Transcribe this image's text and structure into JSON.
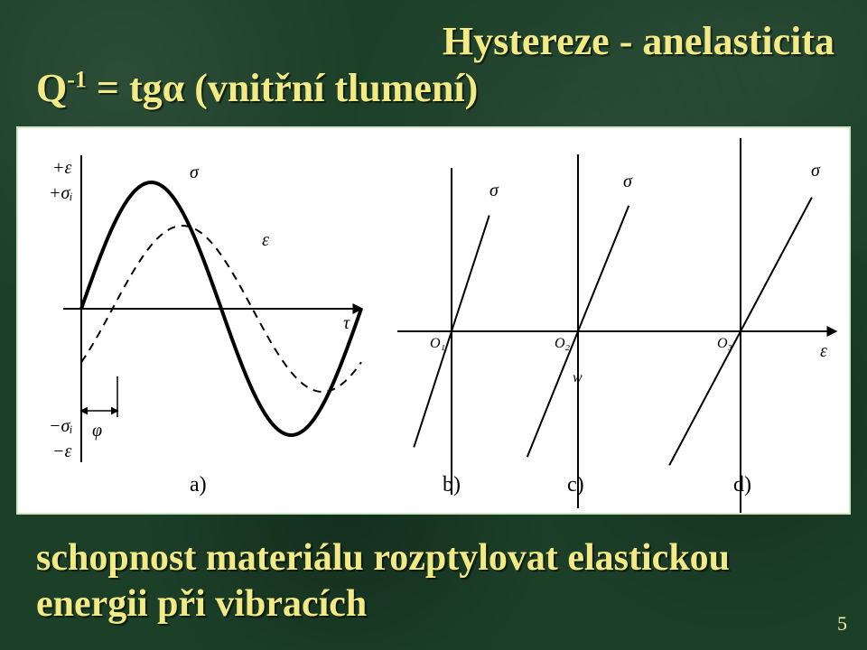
{
  "title_right": "Hystereze - anelasticita",
  "formula": {
    "q": "Q",
    "exp": "-1",
    "rest": " = tgα  (vnitřní tlumení)"
  },
  "caption_line1": "schopnost materiálu rozptylovat elastickou",
  "caption_line2": "energii při vibracích",
  "page_number": "5",
  "diagram": {
    "labels": {
      "a": "a)",
      "b": "b)",
      "c": "c)",
      "d": "d)"
    },
    "axis_symbols": {
      "sigma": "σ",
      "epsilon": "ε",
      "plus_sigma": "+σᵢ",
      "minus_sigma": "−σᵢ",
      "plus_eps": "+ε",
      "minus_eps": "−ε",
      "phi": "φ",
      "t_axis": "τ",
      "w": "w",
      "o1": "O₁",
      "o2": "O₂",
      "o3": "O₃"
    },
    "colors": {
      "ink": "#000000",
      "bg": "#ffffff"
    },
    "stroke_widths": {
      "axis": 2,
      "curve_thick": 4,
      "curve_dash": 2,
      "ellipse": 2,
      "hatch": 1.3
    },
    "fontsize_main": 20,
    "fontsize_sublabel": 24
  }
}
